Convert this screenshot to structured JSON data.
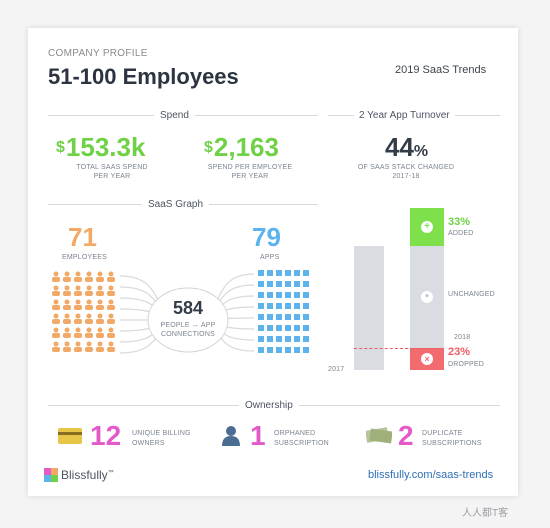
{
  "header": {
    "eyebrow": "COMPANY PROFILE",
    "title": "51-100 Employees",
    "trends": "2019 SaaS Trends"
  },
  "spend": {
    "section_title": "Spend",
    "total_currency": "$",
    "total_value": "153.3k",
    "total_caption_1": "TOTAL SAAS SPEND",
    "total_caption_2": "PER YEAR",
    "per_employee_currency": "$",
    "per_employee_value": "2,163",
    "per_employee_caption_1": "SPEND PER EMPLOYEE",
    "per_employee_caption_2": "PER YEAR"
  },
  "turnover": {
    "section_title": "2 Year App Turnover",
    "value": "44",
    "unit": "%",
    "caption_1": "OF SAAS STACK CHANGED",
    "caption_2": "2017-18",
    "added_pct": "33%",
    "added_label": "ADDED",
    "unchanged_label": "UNCHANGED",
    "dropped_pct": "23%",
    "dropped_label": "DROPPED",
    "year_2017": "2017",
    "year_2018": "2018"
  },
  "graph": {
    "section_title": "SaaS Graph",
    "employees_value": "71",
    "employees_label": "EMPLOYEES",
    "apps_value": "79",
    "apps_label": "APPS",
    "connections_value": "584",
    "connections_label_1": "PEOPLE ↔ APP",
    "connections_label_2": "CONNECTIONS"
  },
  "ownership": {
    "section_title": "Ownership",
    "items": [
      {
        "value": "12",
        "label_1": "UNIQUE BILLING",
        "label_2": "OWNERS",
        "icon": "credit-card-icon"
      },
      {
        "value": "1",
        "label_1": "ORPHANED",
        "label_2": "SUBSCRIPTION",
        "icon": "person-icon"
      },
      {
        "value": "2",
        "label_1": "DUPLICATE",
        "label_2": "SUBSCRIPTIONS",
        "icon": "money-icon"
      }
    ]
  },
  "footer": {
    "logo": "Blissfully",
    "tm": "™",
    "url": "blissfully.com/saas-trends"
  },
  "watermark": "人人都T客",
  "colors": {
    "green": "#6fd146",
    "orange": "#f2a867",
    "blue": "#5db3ec",
    "pink": "#e35ac8",
    "red": "#ef5b62",
    "grey_bar": "#d9dce0"
  }
}
